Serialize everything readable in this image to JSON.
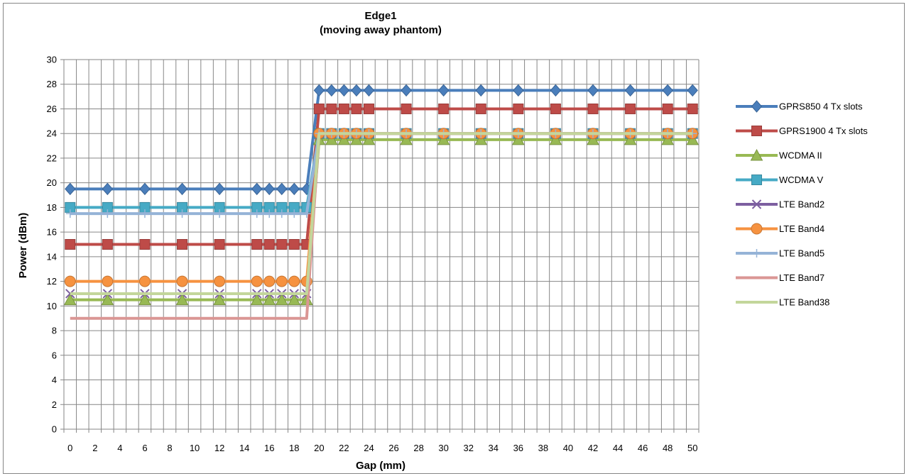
{
  "chart_data": {
    "type": "line",
    "title": "Edge1",
    "subtitle": "(moving away phantom)",
    "xlabel": "Gap (mm)",
    "ylabel": "Power (dBm)",
    "ylim": [
      0,
      30
    ],
    "y_step": 2,
    "grid": true,
    "legend_position": "right",
    "x_axis_type": "category",
    "categories": [
      "0",
      "1",
      "2",
      "3",
      "4",
      "5",
      "6",
      "7",
      "8",
      "9",
      "10",
      "11",
      "12",
      "13",
      "14",
      "15",
      "16",
      "17",
      "18",
      "19",
      "20",
      "21",
      "22",
      "23",
      "24",
      "25",
      "26",
      "27",
      "28",
      "29",
      "30",
      "31",
      "32",
      "33",
      "34",
      "35",
      "36",
      "37",
      "38",
      "39",
      "40",
      "41",
      "42",
      "43",
      "44",
      "45",
      "46",
      "47",
      "48",
      "49",
      "50"
    ],
    "tick_labels": [
      "0",
      "2",
      "4",
      "6",
      "8",
      "10",
      "12",
      "14",
      "16",
      "18",
      "20",
      "22",
      "24",
      "26",
      "28",
      "30",
      "32",
      "34",
      "36",
      "38",
      "40",
      "42",
      "44",
      "46",
      "48",
      "50"
    ],
    "y_tick_labels": [
      "0",
      "2",
      "4",
      "6",
      "8",
      "10",
      "12",
      "14",
      "16",
      "18",
      "20",
      "22",
      "24",
      "26",
      "28",
      "30"
    ],
    "x": [
      0,
      3,
      6,
      9,
      12,
      15,
      16,
      17,
      18,
      19,
      20,
      21,
      22,
      23,
      24,
      27,
      30,
      33,
      36,
      39,
      42,
      45,
      48,
      50
    ],
    "series": [
      {
        "name": "GPRS850 4 Tx slots",
        "color": "#4A7EBB",
        "marker": "diamond",
        "values": [
          19.5,
          19.5,
          19.5,
          19.5,
          19.5,
          19.5,
          19.5,
          19.5,
          19.5,
          19.5,
          27.5,
          27.5,
          27.5,
          27.5,
          27.5,
          27.5,
          27.5,
          27.5,
          27.5,
          27.5,
          27.5,
          27.5,
          27.5,
          27.5
        ]
      },
      {
        "name": "GPRS1900 4 Tx slots",
        "color": "#BE4B48",
        "marker": "square",
        "values": [
          15,
          15,
          15,
          15,
          15,
          15,
          15,
          15,
          15,
          15,
          26,
          26,
          26,
          26,
          26,
          26,
          26,
          26,
          26,
          26,
          26,
          26,
          26,
          26
        ]
      },
      {
        "name": "WCDMA II",
        "color": "#98B954",
        "marker": "triangle",
        "values": [
          10.5,
          10.5,
          10.5,
          10.5,
          10.5,
          10.5,
          10.5,
          10.5,
          10.5,
          10.5,
          23.5,
          23.5,
          23.5,
          23.5,
          23.5,
          23.5,
          23.5,
          23.5,
          23.5,
          23.5,
          23.5,
          23.5,
          23.5,
          23.5
        ]
      },
      {
        "name": "WCDMA V",
        "color": "#46AAC5",
        "marker": "square",
        "values": [
          18,
          18,
          18,
          18,
          18,
          18,
          18,
          18,
          18,
          18,
          24,
          24,
          24,
          24,
          24,
          24,
          24,
          24,
          24,
          24,
          24,
          24,
          24,
          24
        ]
      },
      {
        "name": "LTE Band2",
        "color": "#7D5FA0",
        "marker": "x",
        "values": [
          11,
          11,
          11,
          11,
          11,
          11,
          11,
          11,
          11,
          11,
          24,
          24,
          24,
          24,
          24,
          24,
          24,
          24,
          24,
          24,
          24,
          24,
          24,
          24
        ]
      },
      {
        "name": "LTE Band4",
        "color": "#F69240",
        "marker": "circle",
        "values": [
          12,
          12,
          12,
          12,
          12,
          12,
          12,
          12,
          12,
          12,
          24,
          24,
          24,
          24,
          24,
          24,
          24,
          24,
          24,
          24,
          24,
          24,
          24,
          24
        ]
      },
      {
        "name": "LTE Band5",
        "color": "#95B3D7",
        "marker": "plus",
        "values": [
          17.5,
          17.5,
          17.5,
          17.5,
          17.5,
          17.5,
          17.5,
          17.5,
          17.5,
          17.5,
          24,
          24,
          24,
          24,
          24,
          24,
          24,
          24,
          24,
          24,
          24,
          24,
          24,
          24
        ]
      },
      {
        "name": "LTE Band7",
        "color": "#DA9694",
        "marker": "none",
        "values": [
          9,
          9,
          9,
          9,
          9,
          9,
          9,
          9,
          9,
          9,
          24,
          24,
          24,
          24,
          24,
          24,
          24,
          24,
          24,
          24,
          24,
          24,
          24,
          24
        ]
      },
      {
        "name": "LTE Band38",
        "color": "#C3D69B",
        "marker": "none",
        "values": [
          11,
          11,
          11,
          11,
          11,
          11,
          11,
          11,
          11,
          11,
          24,
          24,
          24,
          24,
          24,
          24,
          24,
          24,
          24,
          24,
          24,
          24,
          24,
          24
        ]
      }
    ]
  }
}
